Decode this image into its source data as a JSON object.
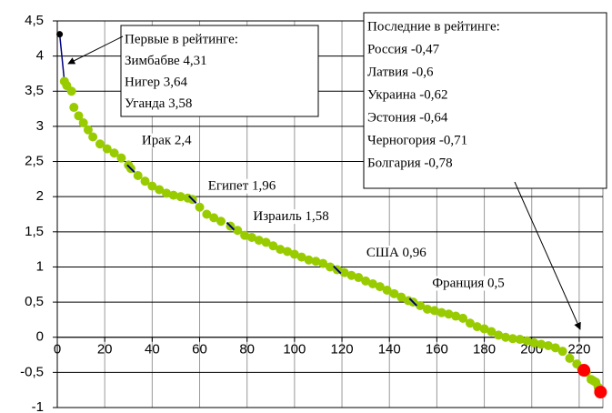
{
  "chart_data": {
    "type": "scatter",
    "xlim": [
      0,
      230
    ],
    "ylim": [
      -1,
      4.5
    ],
    "xticks": [
      0,
      20,
      40,
      60,
      80,
      100,
      120,
      140,
      160,
      180,
      200,
      220
    ],
    "yticks": [
      {
        "value": -1,
        "label": "-1"
      },
      {
        "value": -0.5,
        "label": "-0,5"
      },
      0,
      {
        "value": 0.5,
        "label": "0,5"
      },
      1,
      {
        "value": 1.5,
        "label": "1,5"
      },
      2,
      {
        "value": 2.5,
        "label": "2,5"
      },
      3,
      {
        "value": 3.5,
        "label": "3,5"
      },
      4,
      {
        "value": 4.5,
        "label": "4,5"
      }
    ],
    "grid": true,
    "series": [
      {
        "color": "#000080",
        "x": [
          1,
          3
        ],
        "values": [
          4.31,
          3.64
        ]
      },
      {
        "color": "#99cc00",
        "x": [
          3,
          4,
          6,
          7,
          9,
          11,
          13,
          15,
          18,
          21,
          24,
          27,
          30,
          31,
          34,
          37,
          40,
          43,
          46,
          49,
          52,
          55,
          57,
          60,
          63,
          66,
          69,
          73,
          76,
          79,
          82,
          85,
          88,
          91,
          94,
          97,
          100,
          103,
          106,
          109,
          112,
          115,
          118,
          121,
          124,
          127,
          130,
          133,
          136,
          139,
          142,
          145,
          148,
          150,
          153,
          156,
          159,
          162,
          165,
          168,
          171,
          174,
          177,
          180,
          183,
          186,
          189,
          192,
          195,
          198,
          201,
          204,
          207,
          210,
          213,
          216,
          219,
          221,
          223,
          225,
          226,
          227,
          228,
          229
        ],
        "values": [
          3.64,
          3.58,
          3.5,
          3.27,
          3.15,
          3.05,
          2.95,
          2.85,
          2.75,
          2.68,
          2.62,
          2.55,
          2.45,
          2.4,
          2.3,
          2.22,
          2.15,
          2.1,
          2.05,
          2.02,
          2.0,
          1.98,
          1.96,
          1.85,
          1.75,
          1.7,
          1.65,
          1.58,
          1.52,
          1.45,
          1.42,
          1.38,
          1.35,
          1.3,
          1.25,
          1.22,
          1.18,
          1.14,
          1.1,
          1.08,
          1.05,
          1.0,
          0.96,
          0.92,
          0.88,
          0.85,
          0.8,
          0.76,
          0.72,
          0.67,
          0.62,
          0.57,
          0.52,
          0.5,
          0.45,
          0.4,
          0.38,
          0.35,
          0.33,
          0.3,
          0.27,
          0.2,
          0.15,
          0.12,
          0.08,
          0.03,
          0.0,
          -0.02,
          -0.03,
          -0.05,
          -0.08,
          -0.1,
          -0.12,
          -0.15,
          -0.2,
          -0.3,
          -0.38,
          -0.45,
          -0.5,
          -0.6,
          -0.62,
          -0.64,
          -0.71,
          -0.78
        ]
      },
      {
        "color": "#ff0000",
        "x": [
          222,
          229
        ],
        "values": [
          -0.47,
          -0.78
        ]
      }
    ],
    "annotations": [
      {
        "text": "Ирак 2,4",
        "x": 31,
        "y": 2.4
      },
      {
        "text": "Египет 1,96",
        "x": 57,
        "y": 1.96
      },
      {
        "text": "Израиль 1,58",
        "x": 73,
        "y": 1.58
      },
      {
        "text": "США 0,96",
        "x": 118,
        "y": 0.96
      },
      {
        "text": "Франция 0,5",
        "x": 150,
        "y": 0.5
      }
    ],
    "boxes": [
      {
        "lines": [
          "Первые в рейтинге:",
          "Зимбабве 4,31",
          "Нигер 3,64",
          "Уганда 3,58"
        ]
      },
      {
        "lines": [
          "Последние в рейтинге:",
          "Россия -0,47",
          "Латвия -0,6",
          "Украина -0,62",
          "Эстония -0,64",
          "Черногория -0,71",
          "Болгария -0,78"
        ]
      }
    ]
  }
}
